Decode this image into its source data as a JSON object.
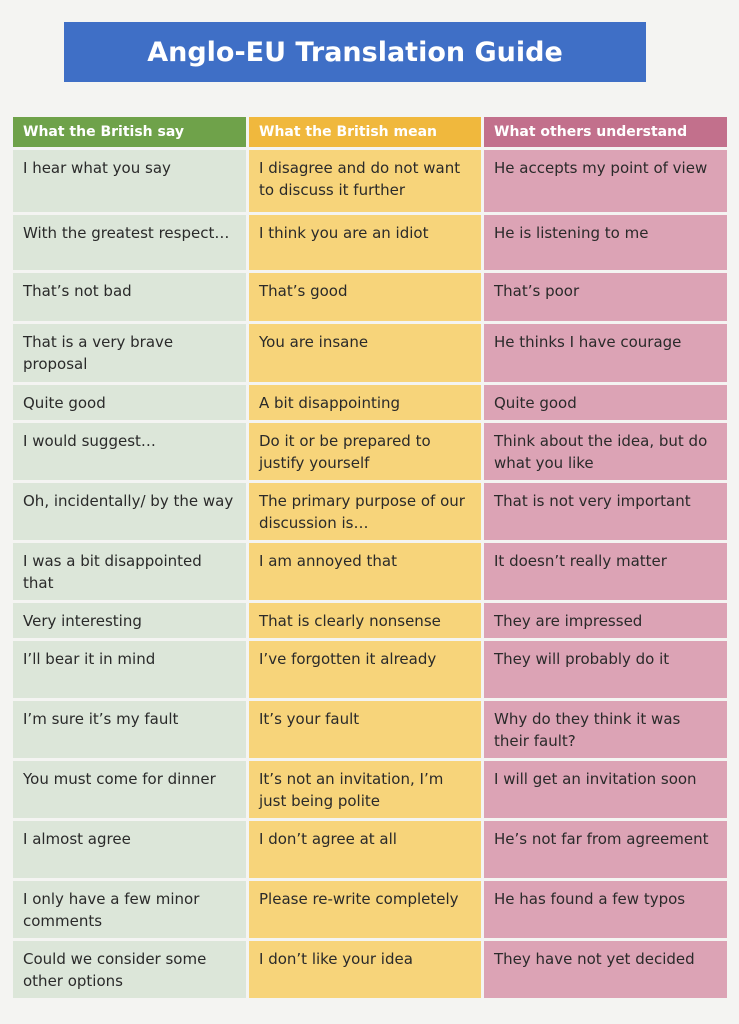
{
  "title": "Anglo-EU Translation Guide",
  "headers": [
    "What the British say",
    "What the British mean",
    "What others understand"
  ],
  "rows": [
    {
      "say": "I hear what you say",
      "mean": "I disagree and do not want to discuss it further",
      "others": "He accepts my point of view"
    },
    {
      "say": "With the greatest respect…",
      "mean": "I think you are an idiot",
      "others": "He is listening to me"
    },
    {
      "say": "That’s not bad",
      "mean": "That’s good",
      "others": "That’s poor"
    },
    {
      "say": "That is a very brave proposal",
      "mean": "You are insane",
      "others": "He thinks I have courage"
    },
    {
      "say": "Quite good",
      "mean": "A bit disappointing",
      "others": "Quite good"
    },
    {
      "say": "I would suggest…",
      "mean": "Do it or be prepared to justify yourself",
      "others": "Think about the idea, but do what you like"
    },
    {
      "say": "Oh, incidentally/ by the way",
      "mean": "The primary purpose of our discussion is…",
      "others": "That is not very important"
    },
    {
      "say": "I was a bit disappointed that",
      "mean": "I am annoyed that",
      "others": "It doesn’t really matter"
    },
    {
      "say": "Very interesting",
      "mean": "That is clearly nonsense",
      "others": "They are impressed"
    },
    {
      "say": "I’ll bear it in mind",
      "mean": "I’ve forgotten it already",
      "others": "They will probably do it"
    },
    {
      "say": "I’m sure it’s my fault",
      "mean": "It’s your fault",
      "others": "Why do they think it was their fault?"
    },
    {
      "say": "You must come for dinner",
      "mean": "It’s not an invitation, I’m just being polite",
      "others": "I will get an invitation soon"
    },
    {
      "say": "I almost agree",
      "mean": "I don’t agree at all",
      "others": "He’s not far from agreement"
    },
    {
      "say": "I only have a few minor comments",
      "mean": "Please re-write completely",
      "others": "He has found a few typos"
    },
    {
      "say": "Could we consider some other options",
      "mean": "I don’t like your idea",
      "others": "They have not yet decided"
    }
  ],
  "colors": {
    "title_bg": "#3f6fc6",
    "say_header": "#6fa24a",
    "mean_header": "#f0b83d",
    "others_header": "#c2708c",
    "say_cell": "#dce6d9",
    "mean_cell": "#f7d47a",
    "others_cell": "#dca3b5"
  }
}
